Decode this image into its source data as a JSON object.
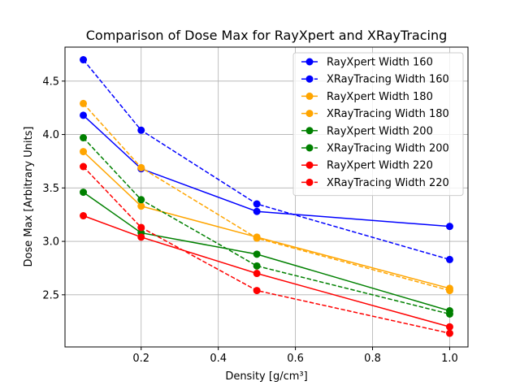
{
  "chart_data": {
    "type": "line",
    "title": "Comparison of Dose Max for RayXpert and XRayTracing",
    "xlabel": "Density [g/cm³]",
    "ylabel": "Dose Max [Arbitrary Units]",
    "x": [
      0.05,
      0.2,
      0.5,
      1.0
    ],
    "xlim": [
      0.0025,
      1.0475
    ],
    "ylim": [
      2.012,
      4.818
    ],
    "xticks": [
      0.2,
      0.4,
      0.6,
      0.8,
      1.0
    ],
    "xtick_labels": [
      "0.2",
      "0.4",
      "0.6",
      "0.8",
      "1.0"
    ],
    "yticks": [
      2.5,
      3.0,
      3.5,
      4.0,
      4.5
    ],
    "ytick_labels": [
      "2.5",
      "3.0",
      "3.5",
      "4.0",
      "4.5"
    ],
    "grid": true,
    "legend_position": "top-right",
    "series": [
      {
        "name": "RayXpert Width 160",
        "color": "#0000ff",
        "style": "solid",
        "values": [
          4.18,
          3.68,
          3.28,
          3.14
        ]
      },
      {
        "name": "XRayTracing Width 160",
        "color": "#0000ff",
        "style": "dashed",
        "values": [
          4.7,
          4.04,
          3.35,
          2.83
        ]
      },
      {
        "name": "RayXpert Width 180",
        "color": "#ffa500",
        "style": "solid",
        "values": [
          3.84,
          3.33,
          3.04,
          2.56
        ]
      },
      {
        "name": "XRayTracing Width 180",
        "color": "#ffa500",
        "style": "dashed",
        "values": [
          4.29,
          3.69,
          3.03,
          2.54
        ]
      },
      {
        "name": "RayXpert Width 200",
        "color": "#008000",
        "style": "solid",
        "values": [
          3.46,
          3.08,
          2.88,
          2.35
        ]
      },
      {
        "name": "XRayTracing Width 200",
        "color": "#008000",
        "style": "dashed",
        "values": [
          3.97,
          3.39,
          2.77,
          2.32
        ]
      },
      {
        "name": "RayXpert Width 220",
        "color": "#ff0000",
        "style": "solid",
        "values": [
          3.24,
          3.04,
          2.7,
          2.2
        ]
      },
      {
        "name": "XRayTracing Width 220",
        "color": "#ff0000",
        "style": "dashed",
        "values": [
          3.7,
          3.13,
          2.54,
          2.14
        ]
      }
    ]
  }
}
